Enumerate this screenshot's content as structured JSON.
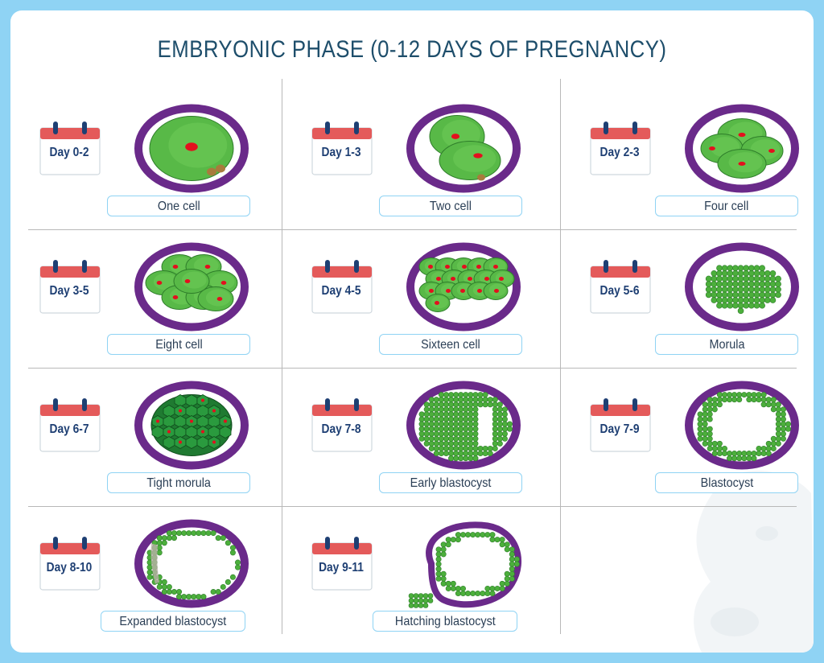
{
  "title": "EMBRYONIC PHASE (0-12 DAYS OF PREGNANCY)",
  "colors": {
    "background": "#8fd3f4",
    "zona": "#6a2a8a",
    "cell_green": "#58b947",
    "nucleus": "#e3101e",
    "calendar_red": "#e45a5a",
    "title_text": "#1e4e6b"
  },
  "stages": [
    {
      "days": "Day 0-2",
      "name": "One cell",
      "icon": "one-cell-embryo-icon"
    },
    {
      "days": "Day 1-3",
      "name": "Two cell",
      "icon": "two-cell-embryo-icon"
    },
    {
      "days": "Day 2-3",
      "name": "Four cell",
      "icon": "four-cell-embryo-icon"
    },
    {
      "days": "Day 3-5",
      "name": "Eight cell",
      "icon": "eight-cell-embryo-icon"
    },
    {
      "days": "Day 4-5",
      "name": "Sixteen cell",
      "icon": "sixteen-cell-embryo-icon"
    },
    {
      "days": "Day 5-6",
      "name": "Morula",
      "icon": "morula-icon"
    },
    {
      "days": "Day 6-7",
      "name": "Tight morula",
      "icon": "tight-morula-icon"
    },
    {
      "days": "Day 7-8",
      "name": "Early blastocyst",
      "icon": "early-blastocyst-icon"
    },
    {
      "days": "Day 7-9",
      "name": "Blastocyst",
      "icon": "blastocyst-icon"
    },
    {
      "days": "Day 8-10",
      "name": "Expanded blastocyst",
      "icon": "expanded-blastocyst-icon"
    },
    {
      "days": "Day 9-11",
      "name": "Hatching blastocyst",
      "icon": "hatching-blastocyst-icon"
    }
  ]
}
